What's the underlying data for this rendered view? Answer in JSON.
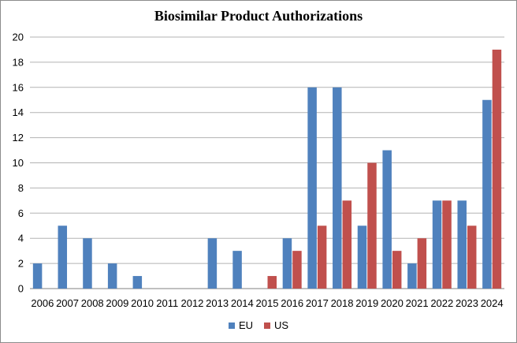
{
  "chart_data": {
    "type": "bar",
    "title": "Biosimilar Product Authorizations",
    "categories": [
      "2006",
      "2007",
      "2008",
      "2009",
      "2010",
      "2011",
      "2012",
      "2013",
      "2014",
      "2015",
      "2016",
      "2017",
      "2018",
      "2019",
      "2020",
      "2021",
      "2022",
      "2023",
      "2024"
    ],
    "series": [
      {
        "name": "EU",
        "color": "#4F81BD",
        "values": [
          2,
          5,
          4,
          2,
          1,
          0,
          0,
          4,
          3,
          0,
          4,
          16,
          16,
          5,
          11,
          2,
          7,
          7,
          15
        ]
      },
      {
        "name": "US",
        "color": "#C0504D",
        "values": [
          0,
          0,
          0,
          0,
          0,
          0,
          0,
          0,
          0,
          1,
          3,
          5,
          7,
          10,
          3,
          4,
          7,
          5,
          19
        ]
      }
    ],
    "ylim": [
      0,
      20
    ],
    "yticks": [
      0,
      2,
      4,
      6,
      8,
      10,
      12,
      14,
      16,
      18,
      20
    ],
    "grid": true,
    "legend": "bottom"
  }
}
